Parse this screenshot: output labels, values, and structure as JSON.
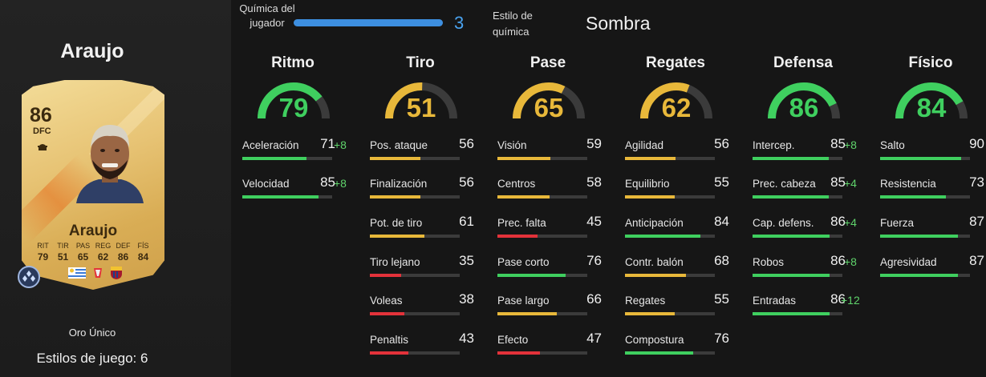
{
  "player": {
    "name": "Araujo",
    "card_rating": "86",
    "card_position": "DFC",
    "card_name": "Araujo",
    "card_stats": [
      {
        "label": "RIT",
        "value": "79"
      },
      {
        "label": "TIR",
        "value": "51"
      },
      {
        "label": "PAS",
        "value": "65"
      },
      {
        "label": "REG",
        "value": "62"
      },
      {
        "label": "DEF",
        "value": "86"
      },
      {
        "label": "FÍS",
        "value": "84"
      }
    ],
    "rarity": "Oro Único",
    "playstyles": "Estilos de juego: 6"
  },
  "header": {
    "chemistry_label": "Química del jugador",
    "chemistry_value": "3",
    "chemistry_max": 3,
    "style_label": "Estilo de química",
    "style_value": "Sombra"
  },
  "colors": {
    "green": "#3fcf5f",
    "yellow": "#e8b83a",
    "red": "#e3323a",
    "track": "#3b3b3b",
    "boost": "#5fd36b",
    "chem_blue": "#3d8fe0"
  },
  "categories": [
    {
      "name": "Ritmo",
      "value": "79",
      "color": "green",
      "stats": [
        {
          "label": "Aceleración",
          "value": "71",
          "boost": "+8",
          "color": "green"
        },
        {
          "label": "Velocidad",
          "value": "85",
          "boost": "+8",
          "color": "green"
        }
      ]
    },
    {
      "name": "Tiro",
      "value": "51",
      "color": "yellow",
      "stats": [
        {
          "label": "Pos. ataque",
          "value": "56",
          "color": "yellow"
        },
        {
          "label": "Finalización",
          "value": "56",
          "color": "yellow"
        },
        {
          "label": "Pot. de tiro",
          "value": "61",
          "color": "yellow"
        },
        {
          "label": "Tiro lejano",
          "value": "35",
          "color": "red"
        },
        {
          "label": "Voleas",
          "value": "38",
          "color": "red"
        },
        {
          "label": "Penaltis",
          "value": "43",
          "color": "red"
        }
      ]
    },
    {
      "name": "Pase",
      "value": "65",
      "color": "yellow",
      "stats": [
        {
          "label": "Visión",
          "value": "59",
          "color": "yellow"
        },
        {
          "label": "Centros",
          "value": "58",
          "color": "yellow"
        },
        {
          "label": "Prec. falta",
          "value": "45",
          "color": "red"
        },
        {
          "label": "Pase corto",
          "value": "76",
          "color": "green"
        },
        {
          "label": "Pase largo",
          "value": "66",
          "color": "yellow"
        },
        {
          "label": "Efecto",
          "value": "47",
          "color": "red"
        }
      ]
    },
    {
      "name": "Regates",
      "value": "62",
      "color": "yellow",
      "stats": [
        {
          "label": "Agilidad",
          "value": "56",
          "color": "yellow"
        },
        {
          "label": "Equilibrio",
          "value": "55",
          "color": "yellow"
        },
        {
          "label": "Anticipación",
          "value": "84",
          "color": "green"
        },
        {
          "label": "Contr. balón",
          "value": "68",
          "color": "yellow"
        },
        {
          "label": "Regates",
          "value": "55",
          "color": "yellow"
        },
        {
          "label": "Compostura",
          "value": "76",
          "color": "green"
        }
      ]
    },
    {
      "name": "Defensa",
      "value": "86",
      "color": "green",
      "stats": [
        {
          "label": "Intercep.",
          "value": "85",
          "boost": "+8",
          "color": "green"
        },
        {
          "label": "Prec. cabeza",
          "value": "85",
          "boost": "+4",
          "color": "green"
        },
        {
          "label": "Cap. defens.",
          "value": "86",
          "boost": "+4",
          "color": "green"
        },
        {
          "label": "Robos",
          "value": "86",
          "boost": "+8",
          "color": "green"
        },
        {
          "label": "Entradas",
          "value": "86",
          "boost": "+12",
          "color": "green"
        }
      ]
    },
    {
      "name": "Físico",
      "value": "84",
      "color": "green",
      "stats": [
        {
          "label": "Salto",
          "value": "90",
          "color": "green"
        },
        {
          "label": "Resistencia",
          "value": "73",
          "color": "green"
        },
        {
          "label": "Fuerza",
          "value": "87",
          "color": "green"
        },
        {
          "label": "Agresividad",
          "value": "87",
          "color": "green"
        }
      ]
    }
  ]
}
